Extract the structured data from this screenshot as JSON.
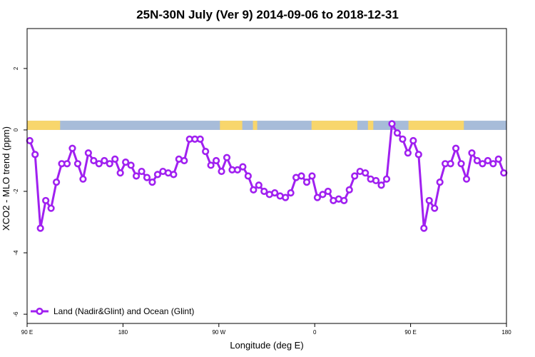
{
  "chart_data": {
    "type": "line",
    "title": "25N-30N July (Ver 9)   2014-09-06 to 2018-12-31",
    "xlabel": "Longitude (deg E)",
    "ylabel": "XCO2 - MLO trend (ppm)",
    "xlim": [
      90,
      540
    ],
    "ylim": [
      -6.3,
      3.3
    ],
    "x_ticks": [
      {
        "value": 90,
        "label": "90 E"
      },
      {
        "value": 180,
        "label": "180"
      },
      {
        "value": 270,
        "label": "90 W"
      },
      {
        "value": 360,
        "label": "0"
      },
      {
        "value": 450,
        "label": "90 E"
      },
      {
        "value": 540,
        "label": "180"
      }
    ],
    "y_ticks": [
      {
        "value": 2,
        "label": "2"
      },
      {
        "value": 0,
        "label": "0"
      },
      {
        "value": -2,
        "label": "-2"
      },
      {
        "value": -4,
        "label": "-4"
      },
      {
        "value": -6,
        "label": "-6"
      }
    ],
    "grid": false,
    "legend_position": "bottom-left",
    "land_mask_band": {
      "y_range": [
        0,
        0.3
      ],
      "ocean_color": "#a7bcd9",
      "land_color": "#f8d66c",
      "land_segments": [
        [
          90,
          121
        ],
        [
          271,
          292
        ],
        [
          302,
          306
        ],
        [
          357,
          400
        ],
        [
          410,
          415
        ],
        [
          448,
          500
        ]
      ]
    },
    "series": [
      {
        "name": "Land (Nadir&Glint) and Ocean (Glint)",
        "color": "#a020f0",
        "x": [
          92.5,
          97.5,
          102.5,
          107.5,
          112.5,
          117.5,
          122.5,
          127.5,
          132.5,
          137.5,
          142.5,
          147.5,
          152.5,
          157.5,
          162.5,
          167.5,
          172.5,
          177.5,
          182.5,
          187.5,
          192.5,
          197.5,
          202.5,
          207.5,
          212.5,
          217.5,
          222.5,
          227.5,
          232.5,
          237.5,
          242.5,
          247.5,
          252.5,
          257.5,
          262.5,
          267.5,
          272.5,
          277.5,
          282.5,
          287.5,
          292.5,
          297.5,
          302.5,
          307.5,
          312.5,
          317.5,
          322.5,
          327.5,
          332.5,
          337.5,
          342.5,
          347.5,
          352.5,
          357.5,
          362.5,
          367.5,
          372.5,
          377.5,
          382.5,
          387.5,
          392.5,
          397.5,
          402.5,
          407.5,
          412.5,
          417.5,
          422.5,
          427.5,
          432.5,
          437.5,
          442.5,
          447.5,
          452.5,
          457.5,
          462.5,
          467.5,
          472.5,
          477.5,
          482.5,
          487.5,
          492.5,
          497.5,
          502.5,
          507.5,
          512.5,
          517.5,
          522.5,
          527.5,
          532.5,
          537.5
        ],
        "y": [
          -0.35,
          -0.8,
          -3.2,
          -2.3,
          -2.55,
          -1.7,
          -1.1,
          -1.1,
          -0.6,
          -1.1,
          -1.6,
          -0.75,
          -1.0,
          -1.1,
          -1.0,
          -1.1,
          -0.95,
          -1.4,
          -1.05,
          -1.15,
          -1.5,
          -1.35,
          -1.55,
          -1.7,
          -1.45,
          -1.35,
          -1.4,
          -1.45,
          -0.95,
          -1.0,
          -0.3,
          -0.3,
          -0.3,
          -0.7,
          -1.15,
          -1.0,
          -1.35,
          -0.9,
          -1.3,
          -1.3,
          -1.2,
          -1.5,
          -1.95,
          -1.8,
          -2.0,
          -2.1,
          -2.05,
          -2.15,
          -2.2,
          -2.05,
          -1.55,
          -1.5,
          -1.7,
          -1.5,
          -2.2,
          -2.1,
          -2.0,
          -2.3,
          -2.25,
          -2.3,
          -1.95,
          -1.5,
          -1.35,
          -1.4,
          -1.6,
          -1.65,
          -1.8,
          -1.6,
          0.2,
          -0.1,
          -0.3,
          -0.75,
          -0.35,
          -0.8,
          -3.2,
          -2.3,
          -2.55,
          -1.7,
          -1.1,
          -1.1,
          -0.6,
          -1.1,
          -1.6,
          -0.75,
          -1.0,
          -1.1,
          -1.0,
          -1.1,
          -0.95,
          -1.4
        ]
      }
    ]
  }
}
